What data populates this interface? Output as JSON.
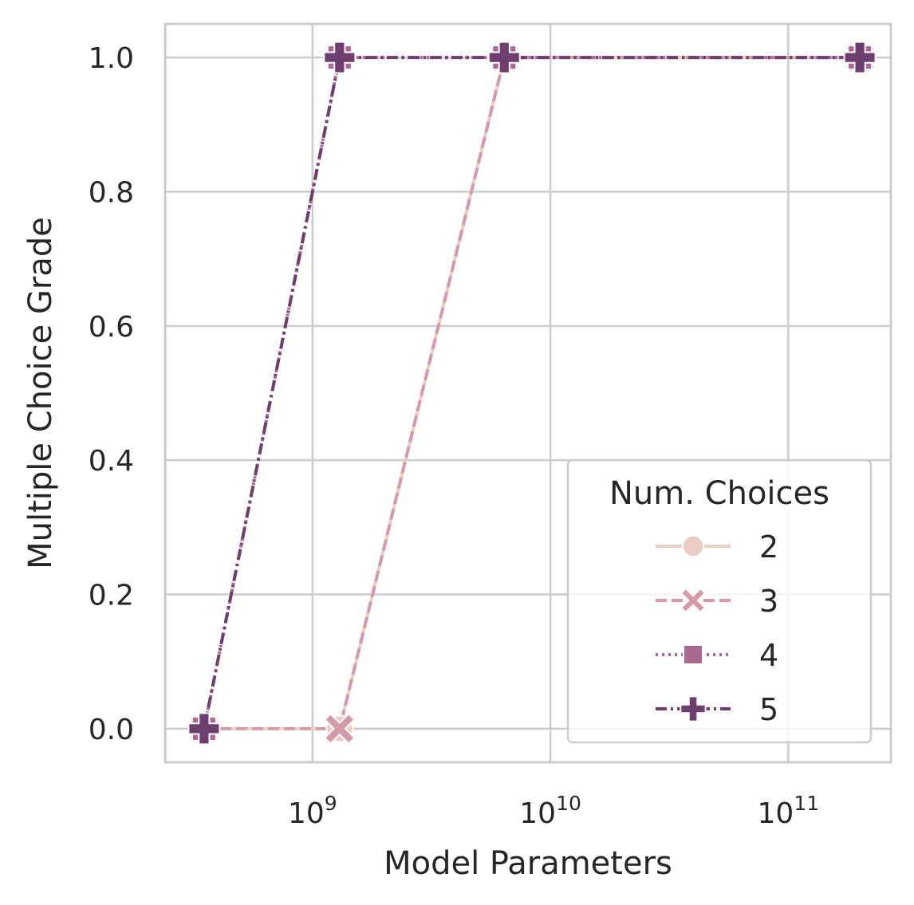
{
  "chart_data": {
    "type": "line",
    "xlabel": "Model Parameters",
    "ylabel": "Multiple Choice Grade",
    "x_scale": "log",
    "xlim": [
      240000000,
      270000000000
    ],
    "ylim": [
      -0.05,
      1.05
    ],
    "x_ticks": [
      {
        "value": 1000000000,
        "base": "10",
        "exp": "9"
      },
      {
        "value": 10000000000,
        "base": "10",
        "exp": "10"
      },
      {
        "value": 100000000000,
        "base": "10",
        "exp": "11"
      }
    ],
    "y_ticks": [
      {
        "value": 0.0,
        "label": "0.0"
      },
      {
        "value": 0.2,
        "label": "0.2"
      },
      {
        "value": 0.4,
        "label": "0.4"
      },
      {
        "value": 0.6,
        "label": "0.6"
      },
      {
        "value": 0.8,
        "label": "0.8"
      },
      {
        "value": 1.0,
        "label": "1.0"
      }
    ],
    "grid": true,
    "legend": {
      "title": "Num. Choices",
      "placement": "lower-right"
    },
    "series": [
      {
        "name": "2",
        "color": "#ebcdc4",
        "dash": "solid",
        "marker": "circle",
        "x": [
          350000000,
          1300000000,
          6400000000,
          200000000000
        ],
        "y": [
          0.0,
          0.0,
          1.0,
          1.0
        ]
      },
      {
        "name": "3",
        "color": "#d49aaa",
        "dash": "dashed",
        "marker": "x",
        "x": [
          350000000,
          1300000000,
          6400000000,
          200000000000
        ],
        "y": [
          0.0,
          0.0,
          1.0,
          1.0
        ]
      },
      {
        "name": "4",
        "color": "#ab6890",
        "dash": "dotted",
        "marker": "square",
        "x": [
          350000000,
          1300000000,
          6400000000,
          200000000000
        ],
        "y": [
          0.0,
          1.0,
          1.0,
          1.0
        ]
      },
      {
        "name": "5",
        "color": "#6e3e6f",
        "dash": "dashdot",
        "marker": "plus",
        "x": [
          350000000,
          1300000000,
          6400000000,
          200000000000
        ],
        "y": [
          0.0,
          1.0,
          1.0,
          1.0
        ]
      }
    ]
  }
}
